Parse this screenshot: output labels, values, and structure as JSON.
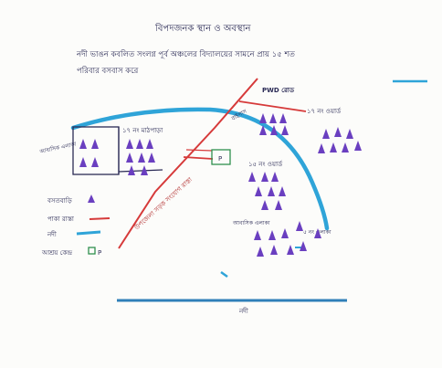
{
  "map": {
    "title": "বিপদজনক স্থান ও অবস্থান",
    "note_line1": "নদী ভাঙন কবলিত সংলগ্ন পূর্ব অঞ্চলের বিদ্যালয়ের সামনে প্রায় ১৫ শত",
    "note_line2": "পরিবার বসবাস করে",
    "labels": {
      "pwd_road": "PWD রোড",
      "paddy_zone_top": "১৭ নং মাঠপাড়া",
      "settlement_left": "আবাসিক এলাকা",
      "settlement_upper_right": "১৭ নং ওয়ার্ড",
      "settlement_center_right": "১৫ নং ওয়ার্ড",
      "settlement_bottom": "আবাসিক এলাকা",
      "settlement_bottom_right": "৫ নং এলাকা",
      "road_label_diag": "উপজেলা সড়ক সংযোগ রাস্তা",
      "small_road": "বাইপাস",
      "facility_marker": "P",
      "bottom_river": "নদী"
    },
    "legend": [
      {
        "label": "বসতবাড়ি",
        "symbol": "house-triangle",
        "color": "#6a3fc0"
      },
      {
        "label": "পাকা রাস্তা",
        "symbol": "road-line",
        "color": "#d63a3a"
      },
      {
        "label": "নদী",
        "symbol": "river-line",
        "color": "#2fa4d8"
      },
      {
        "label": "আশ্রয় কেন্দ্র",
        "symbol": "shelter-square",
        "color": "#2f8f4f"
      }
    ],
    "colors": {
      "river": "#2fa4d8",
      "road": "#d63a3a",
      "house": "#6a3fc0",
      "shelter": "#2f8f4f",
      "ink": "#2a2a55"
    }
  }
}
